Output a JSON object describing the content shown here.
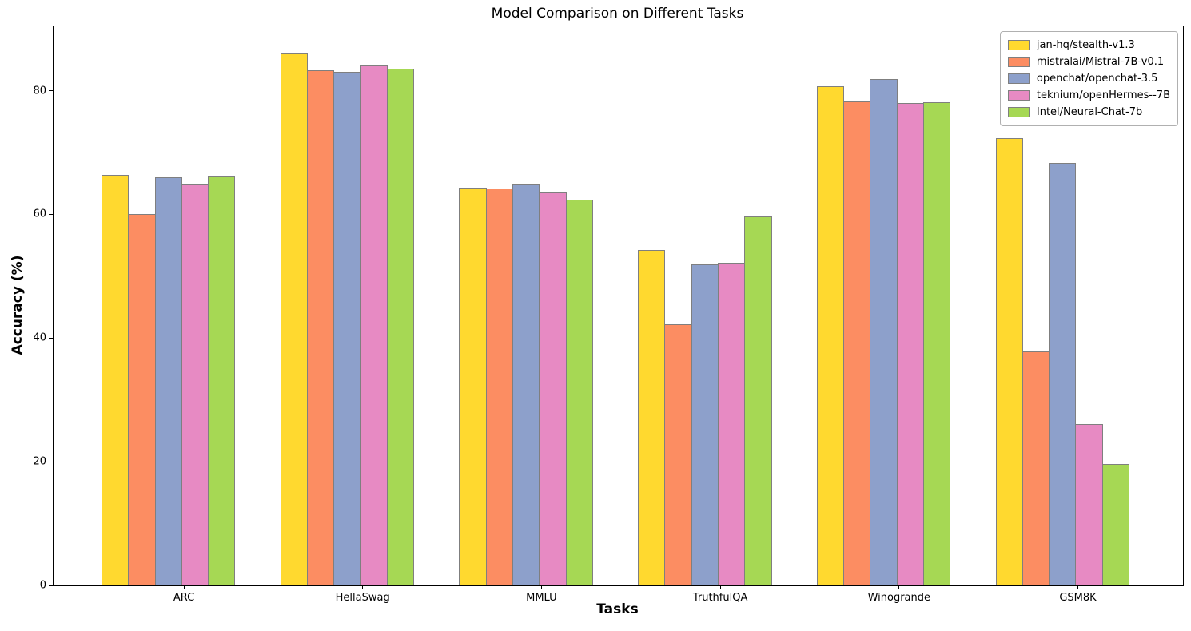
{
  "chart_data": {
    "type": "bar",
    "title": "Model Comparison on Different Tasks",
    "xlabel": "Tasks",
    "ylabel": "Accuracy (%)",
    "categories": [
      "ARC",
      "HellaSwag",
      "MMLU",
      "TruthfulQA",
      "Winogrande",
      "GSM8K"
    ],
    "series": [
      {
        "name": "jan-hq/stealth-v1.3",
        "color": "#FFD92F",
        "values": [
          66.4,
          86.1,
          64.3,
          54.2,
          80.7,
          72.3
        ]
      },
      {
        "name": "mistralai/Mistral-7B-v0.1",
        "color": "#FC8D62",
        "values": [
          60.0,
          83.3,
          64.2,
          42.2,
          78.2,
          37.8
        ]
      },
      {
        "name": "openchat/openchat-3.5",
        "color": "#8DA0CB",
        "values": [
          66.0,
          83.0,
          65.0,
          51.9,
          81.9,
          68.3
        ]
      },
      {
        "name": "teknium/openHermes--7B",
        "color": "#E78AC3",
        "values": [
          64.9,
          84.1,
          63.6,
          52.2,
          78.0,
          26.1
        ]
      },
      {
        "name": "Intel/Neural-Chat-7b",
        "color": "#A6D854",
        "values": [
          66.2,
          83.6,
          62.4,
          59.7,
          78.1,
          19.6
        ]
      }
    ],
    "yticks": [
      0,
      20,
      40,
      60,
      80
    ],
    "ylim": [
      0,
      90.4
    ],
    "grid": false,
    "legend_position": "upper right",
    "bar_edge_color": "#7f7f7f",
    "background_color": "#ffffff"
  }
}
